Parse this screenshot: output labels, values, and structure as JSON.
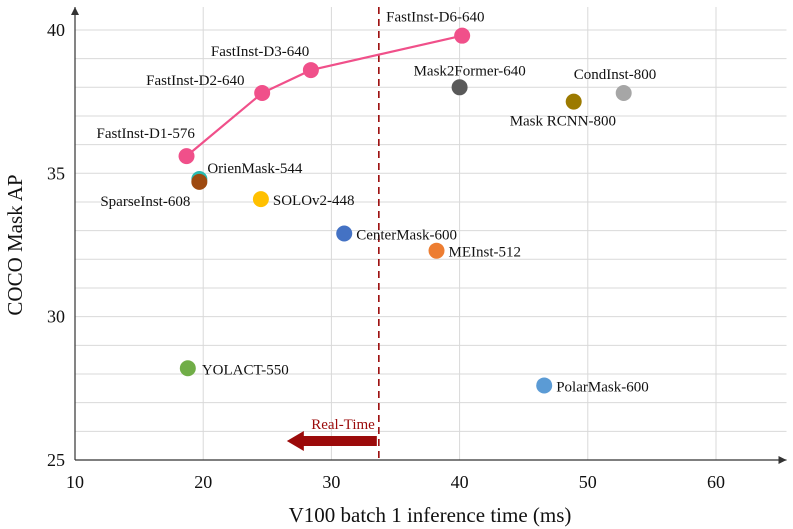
{
  "chart_data": {
    "type": "scatter",
    "xlabel": "V100 batch 1 inference time (ms)",
    "ylabel": "COCO Mask AP",
    "xlim": [
      10,
      65.5
    ],
    "ylim": [
      25,
      40.8
    ],
    "xticks": [
      10,
      20,
      30,
      40,
      50,
      60
    ],
    "yticks": [
      25,
      30,
      35,
      40
    ],
    "grid": true,
    "fastinst_line": {
      "color": "#f0508a",
      "points": [
        {
          "label": "FastInst-D1-576",
          "x": 18.7,
          "y": 35.6
        },
        {
          "label": "FastInst-D2-640",
          "x": 24.6,
          "y": 37.8
        },
        {
          "label": "FastInst-D3-640",
          "x": 28.4,
          "y": 38.6
        },
        {
          "label": "FastInst-D6-640",
          "x": 40.2,
          "y": 39.8
        }
      ]
    },
    "points": [
      {
        "label": "OrienMask-544",
        "x": 19.7,
        "y": 34.8,
        "color": "#2bbbb0"
      },
      {
        "label": "SparseInst-608",
        "x": 19.7,
        "y": 34.7,
        "color": "#9e4a10"
      },
      {
        "label": "SOLOv2-448",
        "x": 24.5,
        "y": 34.1,
        "color": "#ffc000"
      },
      {
        "label": "CenterMask-600",
        "x": 31.0,
        "y": 32.9,
        "color": "#4472c4"
      },
      {
        "label": "MEInst-512",
        "x": 38.2,
        "y": 32.3,
        "color": "#ed7d31"
      },
      {
        "label": "Mask2Former-640",
        "x": 40.0,
        "y": 38.0,
        "color": "#595959"
      },
      {
        "label": "Mask RCNN-800",
        "x": 48.9,
        "y": 37.5,
        "color": "#9c7a00"
      },
      {
        "label": "CondInst-800",
        "x": 52.8,
        "y": 37.8,
        "color": "#a6a6a6"
      },
      {
        "label": "YOLACT-550",
        "x": 18.8,
        "y": 28.2,
        "color": "#70ad47"
      },
      {
        "label": "PolarMask-600",
        "x": 46.6,
        "y": 27.6,
        "color": "#5b9bd5"
      }
    ],
    "realtime": {
      "label": "Real-Time",
      "x": 33.7,
      "color": "#9b0a0a"
    }
  }
}
